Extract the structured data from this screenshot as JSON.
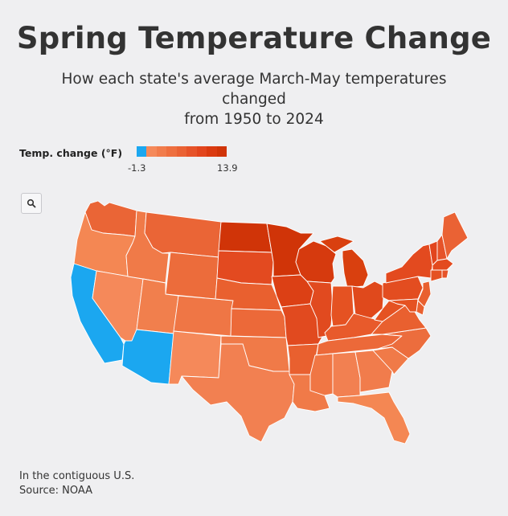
{
  "title": "Spring Temperature Change",
  "subtitle_line1": "How each state's average March-May temperatures",
  "subtitle_line2": "changed",
  "subtitle_line3": "from 1950 to 2024",
  "legend": {
    "title": "Temp. change (°F)",
    "min": "-1.3",
    "max": "13.9",
    "colors": [
      "#1ba7f0",
      "#f5895a",
      "#f17c4c",
      "#ee6f3f",
      "#ea6234",
      "#e65329",
      "#e2451d",
      "#da3a10",
      "#d03408"
    ]
  },
  "search_icon": "search-icon",
  "note": "In the contiguous U.S.",
  "source": "Source: NOAA",
  "states": {
    "WA": "#ea6536",
    "OR": "#f48753",
    "CA": "#1ba7f0",
    "NV": "#f5895a",
    "ID": "#f07a48",
    "MT": "#ea6536",
    "WY": "#ec6c3b",
    "UT": "#f17f4d",
    "AZ": "#1ba7f0",
    "CO": "#ef7645",
    "NM": "#f5895a",
    "ND": "#d03408",
    "SD": "#e34a20",
    "NE": "#e9602f",
    "KS": "#ec6939",
    "OK": "#f07a48",
    "TX": "#f28051",
    "MN": "#d03408",
    "IA": "#dc4015",
    "MO": "#e14a1f",
    "AR": "#e9602f",
    "LA": "#f07a48",
    "WI": "#d63a0e",
    "IL": "#e14a1f",
    "MI": "#d9400f",
    "IN": "#e55222",
    "OH": "#e0491c",
    "KY": "#e85a2b",
    "TN": "#ec6939",
    "MS": "#f07644",
    "AL": "#f28051",
    "GA": "#f17c4c",
    "FL": "#f48753",
    "SC": "#f07a48",
    "NC": "#ec6d3d",
    "VA": "#e9602f",
    "WV": "#e55222",
    "PA": "#e34d20",
    "NY": "#e34a1f",
    "VT": "#e2451d",
    "NH": "#e65329",
    "ME": "#ea6234",
    "MA": "#e34a1f",
    "CT": "#e55222",
    "RI": "#e65329",
    "NJ": "#e9602f",
    "DE": "#e9602f",
    "MD": "#e55222"
  }
}
